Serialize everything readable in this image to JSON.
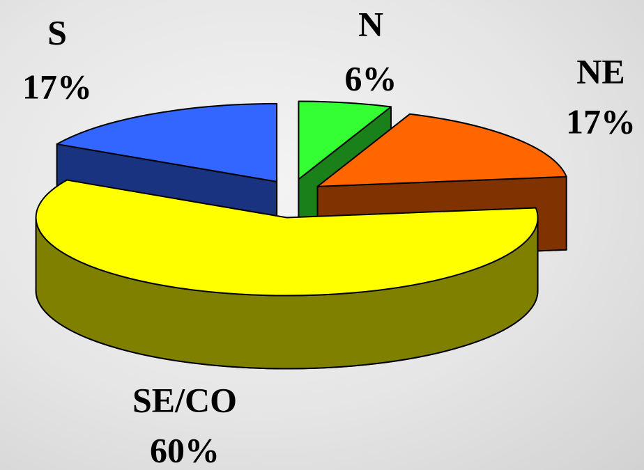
{
  "chart_data": {
    "type": "pie3d",
    "categories": [
      "N",
      "NE",
      "SE/CO",
      "S"
    ],
    "values": [
      6,
      17,
      60,
      17
    ],
    "value_labels": [
      "6%",
      "17%",
      "60%",
      "17%"
    ],
    "colors": [
      "#33ff33",
      "#ff6600",
      "#ffff00",
      "#3366ff"
    ]
  }
}
